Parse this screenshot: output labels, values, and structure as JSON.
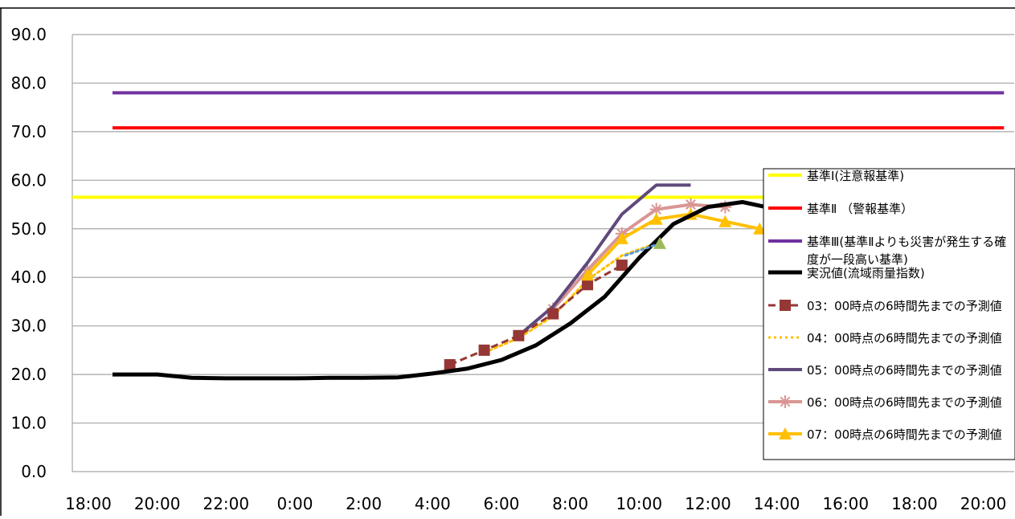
{
  "chart_data": {
    "type": "line",
    "title": "",
    "xlabel": "",
    "ylabel": "",
    "ylim": [
      0,
      90
    ],
    "yticks": [
      "0.0",
      "10.0",
      "20.0",
      "30.0",
      "40.0",
      "50.0",
      "60.0",
      "70.0",
      "80.0",
      "90.0"
    ],
    "xticks": [
      "18:00",
      "20:00",
      "22:00",
      "0:00",
      "2:00",
      "4:00",
      "6:00",
      "8:00",
      "10:00",
      "12:00",
      "14:00",
      "16:00",
      "18:00",
      "20:00"
    ],
    "xtick_hours": [
      0,
      2,
      4,
      6,
      8,
      10,
      12,
      14,
      16,
      18,
      20,
      22,
      24,
      26
    ],
    "grid": true,
    "legend_position": "right",
    "series": [
      {
        "name": "基準Ⅰ(注意報基準)",
        "color": "#FFFF00",
        "style": "solid",
        "width": 4,
        "marker": "none",
        "x": [
          -0.6,
          26.6
        ],
        "y": [
          56.5,
          56.5
        ]
      },
      {
        "name": "基準Ⅱ （警報基準）",
        "color": "#FF0000",
        "style": "solid",
        "width": 4,
        "marker": "none",
        "x": [
          0.7,
          26.6
        ],
        "y": [
          70.8,
          70.8
        ]
      },
      {
        "name": "基準Ⅲ(基準Ⅱよりも災害が発生する確度が一段高い基準)",
        "name_lines": [
          "基準Ⅲ(基準Ⅱよりも災害が発生する確",
          "度が一段高い基準)"
        ],
        "color": "#7030A0",
        "style": "solid",
        "width": 4,
        "marker": "none",
        "x": [
          0.7,
          26.6
        ],
        "y": [
          78,
          78
        ]
      },
      {
        "name": "実況値(流域雨量指数)",
        "color": "#000000",
        "style": "solid",
        "width": 5,
        "marker": "none",
        "x": [
          0.7,
          2,
          3,
          4,
          5,
          6,
          7,
          8,
          9,
          10,
          11,
          12,
          13,
          14,
          15,
          16,
          17,
          18,
          19,
          20,
          21,
          22
        ],
        "y": [
          20,
          20,
          19.3,
          19.2,
          19.2,
          19.2,
          19.3,
          19.3,
          19.4,
          20.2,
          21.2,
          23,
          26,
          30.5,
          36,
          44,
          51,
          54.5,
          55.5,
          54,
          54,
          54
        ]
      },
      {
        "name": "03：00時点の6時間先までの予測値",
        "color": "#953735",
        "style": "dashed",
        "width": 3,
        "marker": "square",
        "x": [
          10.5,
          11.5,
          12.5,
          13.5,
          14.5,
          15.5
        ],
        "y": [
          22,
          25,
          28,
          32.5,
          38.5,
          42.5
        ]
      },
      {
        "name": "04：00時点の6時間先までの予測値",
        "color": "#FFC000",
        "style": "dotted",
        "width": 3,
        "marker": "none",
        "x": [
          11.5,
          12.5,
          13.5,
          14.5,
          15.5,
          16.5
        ],
        "y": [
          24.5,
          27.5,
          32,
          39.5,
          44.5,
          47
        ]
      },
      {
        "name": "05：00時点の6時間先までの予測値",
        "color": "#604A7B",
        "style": "solid",
        "width": 4,
        "marker": "none",
        "x": [
          12.5,
          13.5,
          14.5,
          15.5,
          16.5,
          17.5
        ],
        "y": [
          28,
          34,
          43,
          53,
          59,
          59
        ]
      },
      {
        "name": "06：00時点の6時間先までの予測値",
        "color": "#D99694",
        "style": "solid",
        "width": 4,
        "marker": "asterisk",
        "x": [
          13.5,
          14.5,
          15.5,
          16.5,
          17.5,
          18.5
        ],
        "y": [
          33.5,
          41.5,
          49,
          54,
          55,
          54.5
        ]
      },
      {
        "name": "07：00時点の6時間先までの予測値",
        "color": "#FFC000",
        "style": "solid",
        "width": 4,
        "marker": "triangle",
        "x": [
          14.5,
          15.5,
          16.5,
          17.5,
          18.5,
          19.5
        ],
        "y": [
          40.5,
          48,
          52,
          53,
          51.5,
          50
        ]
      }
    ],
    "extra_marks": [
      {
        "color": "#5B9BD5",
        "style": "dotted",
        "x": [
          15.6,
          16.6
        ],
        "y": [
          44.5,
          47
        ]
      },
      {
        "color": "#9BBB59",
        "marker": "triangle",
        "x": [
          16.6
        ],
        "y": [
          47
        ]
      }
    ]
  }
}
